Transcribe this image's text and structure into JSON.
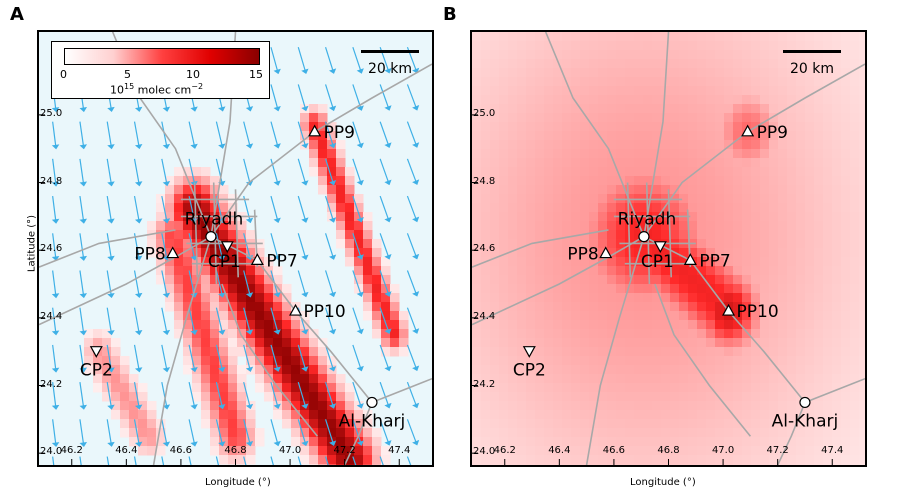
{
  "panels": [
    {
      "letter": "A"
    },
    {
      "letter": "B"
    }
  ],
  "xlabel": "Longitude (°)",
  "ylabel": "Latitude (°)",
  "x_ticks": [
    "46.2",
    "46.4",
    "46.6",
    "46.8",
    "47.0",
    "47.2",
    "47.4"
  ],
  "y_ticks": [
    "25.0",
    "24.8",
    "24.6",
    "24.4",
    "24.2",
    "24.0"
  ],
  "colorbar": {
    "ticks": [
      "0",
      "5",
      "10",
      "15"
    ],
    "label_base": "10",
    "label_exp": "15",
    "label_rest": " molec cm",
    "label_rest_exp": "−2",
    "min": 0,
    "max": 15
  },
  "scalebar_label": "20 km",
  "sites": [
    {
      "name": "Riyadh",
      "lon": 46.71,
      "lat": 24.64,
      "marker": "circle"
    },
    {
      "name": "CP1",
      "lon": 46.77,
      "lat": 24.61,
      "marker": "triangle-down"
    },
    {
      "name": "PP7",
      "lon": 46.88,
      "lat": 24.57,
      "marker": "triangle-up"
    },
    {
      "name": "PP8",
      "lon": 46.57,
      "lat": 24.59,
      "marker": "triangle-up"
    },
    {
      "name": "PP9",
      "lon": 47.09,
      "lat": 24.95,
      "marker": "triangle-up"
    },
    {
      "name": "PP10",
      "lon": 47.02,
      "lat": 24.42,
      "marker": "triangle-up"
    },
    {
      "name": "CP2",
      "lon": 46.29,
      "lat": 24.3,
      "marker": "triangle-down"
    },
    {
      "name": "Al-Kharj",
      "lon": 47.3,
      "lat": 24.15,
      "marker": "circle"
    }
  ],
  "colors": {
    "road": "#a8a8a8",
    "wind_arrow": "#3fb0e6",
    "no2_max": "#8a0000",
    "panel_a_background": "#eaf7fb"
  }
}
